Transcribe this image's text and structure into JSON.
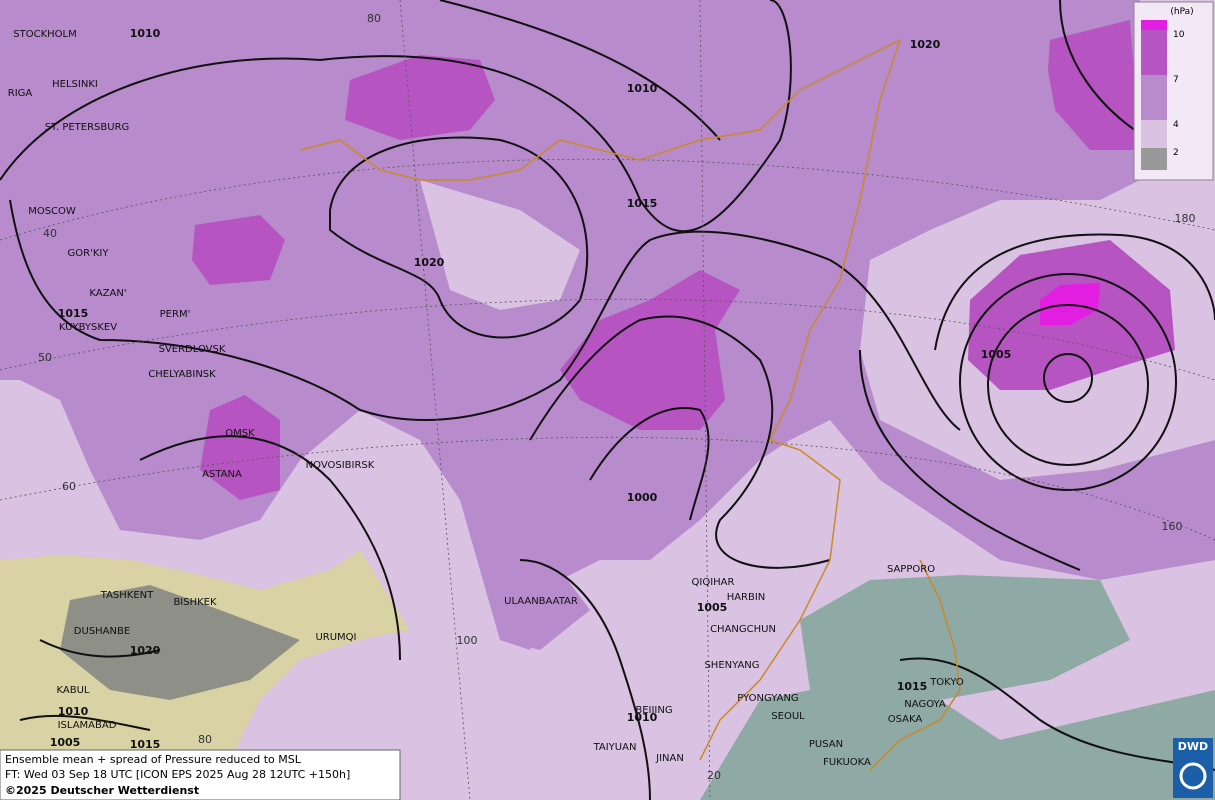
{
  "map": {
    "cities": [
      "STOCKHOLM",
      "HELSINKI",
      "RIGA",
      "ST. PETERSBURG",
      "MOSCOW",
      "GOR'KIY",
      "KAZAN'",
      "PERM'",
      "KUYBYSKEV",
      "SVERDLOVSK",
      "CHELYABINSK",
      "OMSK",
      "ASTANA",
      "NOVOSIBIRSK",
      "TASHKENT",
      "BISHKEK",
      "DUSHANBE",
      "URUMQI",
      "KABUL",
      "ISLAMABAD",
      "ULAANBAATAR",
      "QIQIHAR",
      "HARBIN",
      "CHANGCHUN",
      "SHENYANG",
      "PYONGYANG",
      "SEOUL",
      "BEIJING",
      "TAIYUAN",
      "JINAN",
      "PUSAN",
      "FUKUOKA",
      "OSAKA",
      "NAGOYA",
      "TOKYO",
      "SAPPORO"
    ],
    "isobar_labels": [
      1010,
      1010,
      1020,
      1015,
      1020,
      1015,
      1005,
      1000,
      1005,
      1020,
      1015,
      1010,
      1010,
      1005,
      1015
    ],
    "grid_labels": [
      80,
      40,
      50,
      60,
      100,
      80,
      20,
      180,
      160
    ],
    "legend": {
      "unit": "(hPa)",
      "levels": [
        10,
        7,
        4,
        2
      ]
    },
    "caption": {
      "line1": "Ensemble mean + spread of Pressure reduced to MSL",
      "line2": "FT: Wed 03 Sep 18 UTC [ICON EPS 2025 Aug 28 12UTC +150h]",
      "line3": "©2025 Deutscher Wetterdienst"
    },
    "logo": "DWD"
  }
}
